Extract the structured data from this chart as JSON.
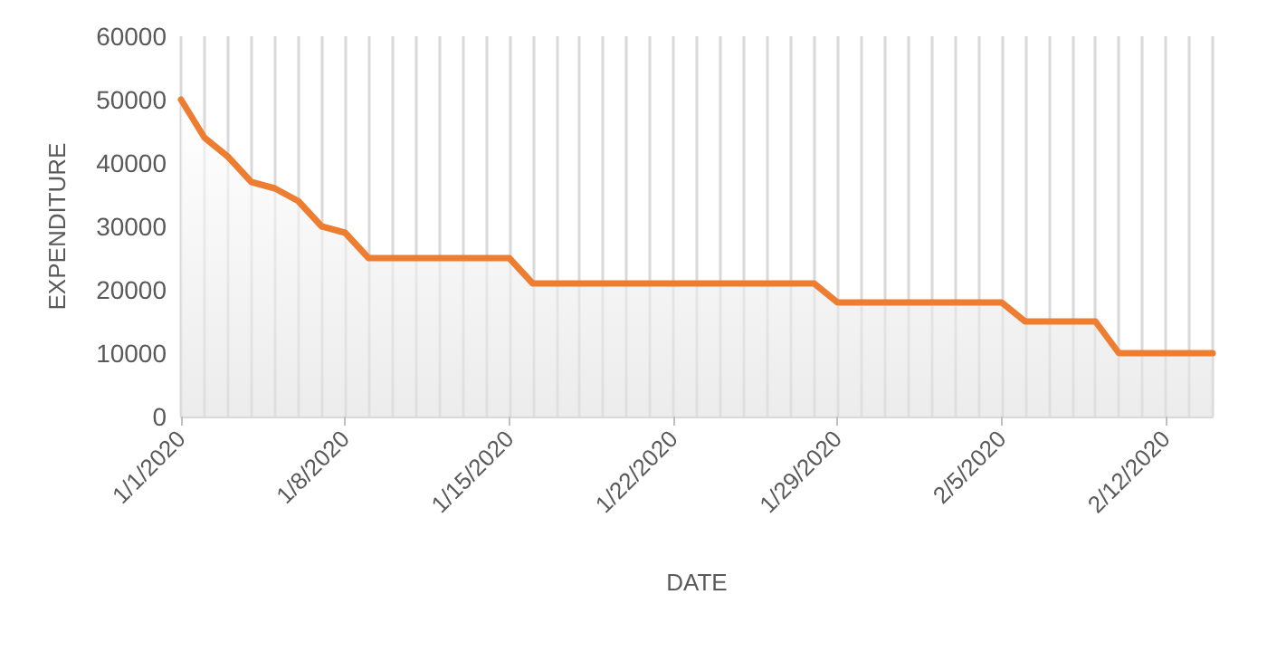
{
  "chart_data": {
    "type": "area",
    "xlabel": "DATE",
    "ylabel": "EXPENDITURE",
    "categories": [
      "1/1/2020",
      null,
      null,
      null,
      null,
      null,
      null,
      "1/8/2020",
      null,
      null,
      null,
      null,
      null,
      null,
      "1/15/2020",
      null,
      null,
      null,
      null,
      null,
      null,
      "1/22/2020",
      null,
      null,
      null,
      null,
      null,
      null,
      "1/29/2020",
      null,
      null,
      null,
      null,
      null,
      null,
      "2/5/2020",
      null,
      null,
      null,
      null,
      null,
      null,
      "2/12/2020",
      null,
      null
    ],
    "series": [
      {
        "color": "#ed7d31",
        "values": [
          50000,
          44000,
          41000,
          37000,
          36000,
          34000,
          30000,
          29000,
          25000,
          25000,
          25000,
          25000,
          25000,
          25000,
          25000,
          21000,
          21000,
          21000,
          21000,
          21000,
          21000,
          21000,
          21000,
          21000,
          21000,
          21000,
          21000,
          21000,
          18000,
          18000,
          18000,
          18000,
          18000,
          18000,
          18000,
          18000,
          15000,
          15000,
          15000,
          15000,
          10000,
          10000,
          10000,
          10000,
          10000
        ]
      }
    ],
    "ylim": [
      0,
      60000
    ],
    "yticks": [
      0,
      10000,
      20000,
      30000,
      40000,
      50000,
      60000
    ],
    "grid": "x",
    "marker": "none",
    "line_style": "solid"
  }
}
